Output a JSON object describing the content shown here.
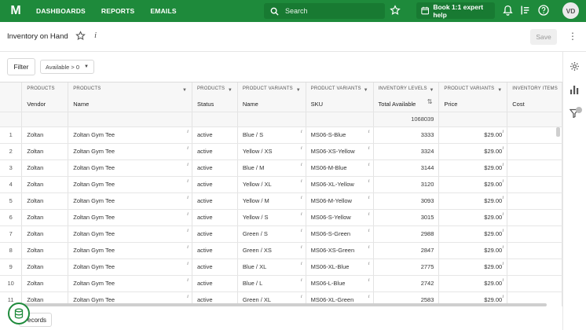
{
  "nav": {
    "logo": "M",
    "links": [
      "DASHBOARDS",
      "REPORTS",
      "EMAILS"
    ],
    "search_placeholder": "Search",
    "book_label": "Book 1:1 expert help",
    "avatar": "VD",
    "brand_color": "#1e8a3b"
  },
  "header": {
    "title": "Inventory on Hand",
    "info": "i",
    "save_label": "Save"
  },
  "filter": {
    "button_label": "Filter",
    "chip_label": "Available > 0"
  },
  "table": {
    "groups": [
      "PRODUCTS",
      "PRODUCTS",
      "PRODUCTS",
      "PRODUCT VARIANTS",
      "PRODUCT VARIANTS",
      "INVENTORY LEVELS",
      "PRODUCT VARIANTS",
      "INVENTORY ITEMS"
    ],
    "columns": [
      "Vendor",
      "Name",
      "Status",
      "Name",
      "SKU",
      "Total Available",
      "Price",
      "Cost"
    ],
    "total_available_sum": "1068039",
    "rows": [
      {
        "n": "1",
        "vendor": "Zoltan",
        "name": "Zoltan Gym Tee",
        "status": "active",
        "variant": "Blue / S",
        "sku": "MS06-S-Blue",
        "available": "3333",
        "price": "$29.00"
      },
      {
        "n": "2",
        "vendor": "Zoltan",
        "name": "Zoltan Gym Tee",
        "status": "active",
        "variant": "Yellow / XS",
        "sku": "MS06-XS-Yellow",
        "available": "3324",
        "price": "$29.00"
      },
      {
        "n": "3",
        "vendor": "Zoltan",
        "name": "Zoltan Gym Tee",
        "status": "active",
        "variant": "Blue / M",
        "sku": "MS06-M-Blue",
        "available": "3144",
        "price": "$29.00"
      },
      {
        "n": "4",
        "vendor": "Zoltan",
        "name": "Zoltan Gym Tee",
        "status": "active",
        "variant": "Yellow / XL",
        "sku": "MS06-XL-Yellow",
        "available": "3120",
        "price": "$29.00"
      },
      {
        "n": "5",
        "vendor": "Zoltan",
        "name": "Zoltan Gym Tee",
        "status": "active",
        "variant": "Yellow / M",
        "sku": "MS06-M-Yellow",
        "available": "3093",
        "price": "$29.00"
      },
      {
        "n": "6",
        "vendor": "Zoltan",
        "name": "Zoltan Gym Tee",
        "status": "active",
        "variant": "Yellow / S",
        "sku": "MS06-S-Yellow",
        "available": "3015",
        "price": "$29.00"
      },
      {
        "n": "7",
        "vendor": "Zoltan",
        "name": "Zoltan Gym Tee",
        "status": "active",
        "variant": "Green / S",
        "sku": "MS06-S-Green",
        "available": "2988",
        "price": "$29.00"
      },
      {
        "n": "8",
        "vendor": "Zoltan",
        "name": "Zoltan Gym Tee",
        "status": "active",
        "variant": "Green / XS",
        "sku": "MS06-XS-Green",
        "available": "2847",
        "price": "$29.00"
      },
      {
        "n": "9",
        "vendor": "Zoltan",
        "name": "Zoltan Gym Tee",
        "status": "active",
        "variant": "Blue / XL",
        "sku": "MS06-XL-Blue",
        "available": "2775",
        "price": "$29.00"
      },
      {
        "n": "10",
        "vendor": "Zoltan",
        "name": "Zoltan Gym Tee",
        "status": "active",
        "variant": "Blue / L",
        "sku": "MS06-L-Blue",
        "available": "2742",
        "price": "$29.00"
      },
      {
        "n": "11",
        "vendor": "Zoltan",
        "name": "Zoltan Gym Tee",
        "status": "active",
        "variant": "Green / XL",
        "sku": "MS06-XL-Green",
        "available": "2583",
        "price": "$29.00"
      }
    ]
  },
  "footer": {
    "records_label": "ecords"
  }
}
